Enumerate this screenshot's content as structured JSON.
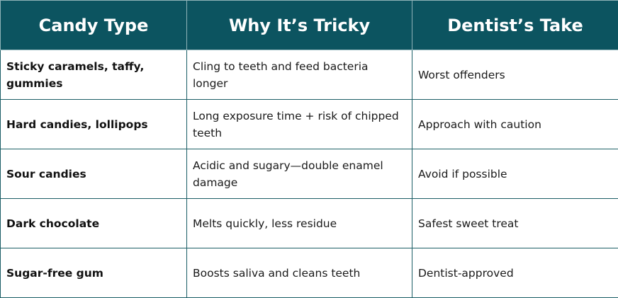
{
  "headers": {
    "col1": "Candy Type",
    "col2": "Why It’s Tricky",
    "col3": "Dentist’s Take"
  },
  "rows": [
    {
      "type": "Sticky caramels, taffy, gummies",
      "why": "Cling to teeth and feed bacteria longer",
      "take": "Worst offenders"
    },
    {
      "type": "Hard candies, lollipops",
      "why": "Long exposure time + risk of chipped teeth",
      "take": "Approach with caution"
    },
    {
      "type": "Sour candies",
      "why": "Acidic and sugary—double enamel damage",
      "take": "Avoid if possible"
    },
    {
      "type": "Dark chocolate",
      "why": "Melts quickly, less residue",
      "take": "Safest sweet treat"
    },
    {
      "type": "Sugar-free gum",
      "why": "Boosts saliva and cleans teeth",
      "take": "Dentist-approved"
    }
  ],
  "colors": {
    "header_bg": "#0c5460",
    "header_text": "#ffffff",
    "border": "#1b5e66"
  }
}
